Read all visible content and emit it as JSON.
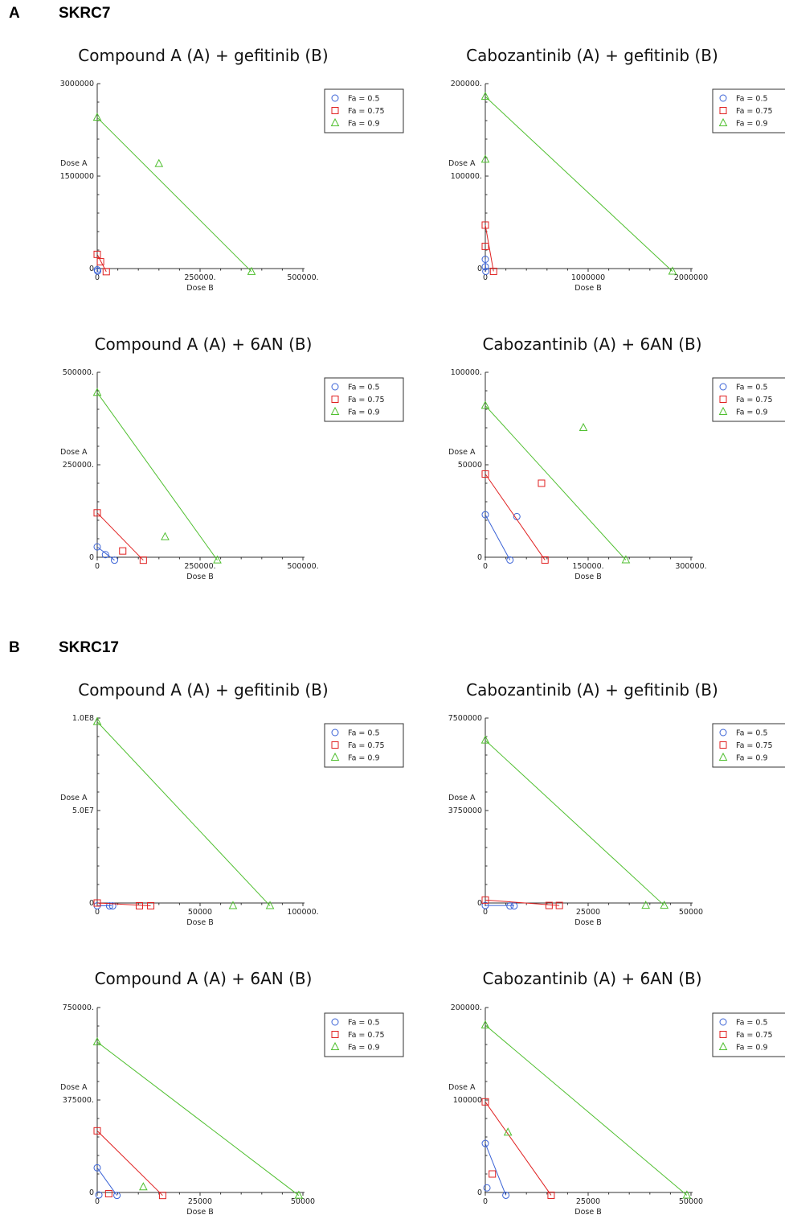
{
  "sections": [
    {
      "letter": "A",
      "cell_line": "SKRC7"
    },
    {
      "letter": "B",
      "cell_line": "SKRC17"
    }
  ],
  "colors": {
    "fa05": "#3b63d6",
    "fa075": "#e02020",
    "fa09": "#4fbf2f"
  },
  "legend": [
    "Fa = 0.5",
    "Fa = 0.75",
    "Fa = 0.9"
  ],
  "chart_data": [
    {
      "type": "scatter",
      "section": "SKRC7",
      "title": "Compound A (A) + gefitinib (B)",
      "xlabel": "Dose B",
      "ylabel": "Dose A",
      "xlim": [
        0,
        500000
      ],
      "ylim": [
        0,
        3000000
      ],
      "xticks": [
        "0",
        "250000.",
        "500000."
      ],
      "yticks": [
        "0",
        "1500000",
        "3000000"
      ],
      "series": [
        {
          "name": "Fa = 0.5",
          "lines": [
            [
              [
                0,
                0
              ],
              [
                2000,
                -50000
              ]
            ]
          ],
          "points": [
            [
              0,
              -20000
            ],
            [
              1000,
              -40000
            ]
          ]
        },
        {
          "name": "Fa = 0.75",
          "lines": [
            [
              [
                0,
                230000
              ],
              [
                22000,
                -50000
              ]
            ]
          ],
          "points": [
            [
              0,
              230000
            ],
            [
              8000,
              110000
            ],
            [
              22000,
              -50000
            ]
          ]
        },
        {
          "name": "Fa = 0.9",
          "lines": [
            [
              [
                0,
                2450000
              ],
              [
                375000,
                -50000
              ]
            ]
          ],
          "points": [
            [
              0,
              2450000
            ],
            [
              150000,
              1700000
            ],
            [
              375000,
              -50000
            ]
          ]
        }
      ]
    },
    {
      "type": "scatter",
      "section": "SKRC7",
      "title": "Cabozantinib (A) + gefitinib (B)",
      "xlabel": "Dose B",
      "ylabel": "Dose A",
      "xlim": [
        0,
        2000000
      ],
      "ylim": [
        0,
        200000
      ],
      "xticks": [
        "0",
        "1000000",
        "2000000"
      ],
      "yticks": [
        "0",
        "100000.",
        "200000."
      ],
      "series": [
        {
          "name": "Fa = 0.5",
          "lines": [
            [
              [
                0,
                10000
              ],
              [
                5000,
                -3000
              ]
            ]
          ],
          "points": [
            [
              0,
              10000
            ],
            [
              0,
              2000
            ],
            [
              5000,
              -3000
            ]
          ]
        },
        {
          "name": "Fa = 0.75",
          "lines": [
            [
              [
                0,
                47000
              ],
              [
                80000,
                -3000
              ]
            ]
          ],
          "points": [
            [
              0,
              47000
            ],
            [
              0,
              24000
            ],
            [
              80000,
              -3000
            ]
          ]
        },
        {
          "name": "Fa = 0.9",
          "lines": [
            [
              [
                0,
                186000
              ],
              [
                1820000,
                -3000
              ]
            ]
          ],
          "points": [
            [
              0,
              186000
            ],
            [
              0,
              118000
            ],
            [
              1820000,
              -3000
            ]
          ]
        }
      ]
    },
    {
      "type": "scatter",
      "section": "SKRC7",
      "title": "Compound A (A) + 6AN (B)",
      "xlabel": "Dose B",
      "ylabel": "Dose A",
      "xlim": [
        0,
        500000
      ],
      "ylim": [
        0,
        500000
      ],
      "xticks": [
        "0",
        "250000.",
        "500000."
      ],
      "yticks": [
        "0",
        "250000.",
        "500000."
      ],
      "series": [
        {
          "name": "Fa = 0.5",
          "lines": [
            [
              [
                0,
                28000
              ],
              [
                42000,
                -8000
              ]
            ]
          ],
          "points": [
            [
              0,
              28000
            ],
            [
              20000,
              7000
            ],
            [
              42000,
              -8000
            ]
          ]
        },
        {
          "name": "Fa = 0.75",
          "lines": [
            [
              [
                0,
                120000
              ],
              [
                112000,
                -8000
              ]
            ]
          ],
          "points": [
            [
              0,
              120000
            ],
            [
              62000,
              17000
            ],
            [
              112000,
              -8000
            ]
          ]
        },
        {
          "name": "Fa = 0.9",
          "lines": [
            [
              [
                0,
                445000
              ],
              [
                292000,
                -8000
              ]
            ]
          ],
          "points": [
            [
              0,
              445000
            ],
            [
              165000,
              55000
            ],
            [
              292000,
              -8000
            ]
          ]
        }
      ]
    },
    {
      "type": "scatter",
      "section": "SKRC7",
      "title": "Cabozantinib (A) + 6AN (B)",
      "xlabel": "Dose B",
      "ylabel": "Dose A",
      "xlim": [
        0,
        300000
      ],
      "ylim": [
        0,
        100000
      ],
      "xticks": [
        "0",
        "150000.",
        "300000."
      ],
      "yticks": [
        "0",
        "50000",
        "100000."
      ],
      "series": [
        {
          "name": "Fa = 0.5",
          "lines": [
            [
              [
                0,
                23000
              ],
              [
                36000,
                -1500
              ]
            ]
          ],
          "points": [
            [
              0,
              23000
            ],
            [
              46000,
              22000
            ],
            [
              36000,
              -1500
            ]
          ]
        },
        {
          "name": "Fa = 0.75",
          "lines": [
            [
              [
                0,
                45000
              ],
              [
                87000,
                -1500
              ]
            ]
          ],
          "points": [
            [
              0,
              45000
            ],
            [
              82000,
              40000
            ],
            [
              87000,
              -1500
            ]
          ]
        },
        {
          "name": "Fa = 0.9",
          "lines": [
            [
              [
                0,
                82000
              ],
              [
                205000,
                -1500
              ]
            ]
          ],
          "points": [
            [
              0,
              82000
            ],
            [
              143000,
              70000
            ],
            [
              205000,
              -1500
            ]
          ]
        }
      ]
    },
    {
      "type": "scatter",
      "section": "SKRC17",
      "title": "Compound A (A) + gefitinib (B)",
      "xlabel": "Dose B",
      "ylabel": "Dose A",
      "xlim": [
        0,
        100000
      ],
      "ylim": [
        0,
        100000000
      ],
      "xticks": [
        "0",
        "50000",
        "100000."
      ],
      "yticks": [
        "0",
        "5.0E7",
        "1.0E8"
      ],
      "series": [
        {
          "name": "Fa = 0.5",
          "lines": [
            [
              [
                0,
                -1500000
              ],
              [
                7000,
                -1500000
              ]
            ]
          ],
          "points": [
            [
              0,
              -1500000
            ],
            [
              6000,
              -1600000
            ],
            [
              7500,
              -1600000
            ]
          ]
        },
        {
          "name": "Fa = 0.75",
          "lines": [
            [
              [
                0,
                0
              ],
              [
                26000,
                -1500000
              ]
            ]
          ],
          "points": [
            [
              0,
              0
            ],
            [
              20500,
              -1500000
            ],
            [
              26000,
              -1500000
            ]
          ]
        },
        {
          "name": "Fa = 0.9",
          "lines": [
            [
              [
                0,
                98000000
              ],
              [
                84000,
                -1500000
              ]
            ]
          ],
          "points": [
            [
              0,
              98000000
            ],
            [
              66000,
              -1500000
            ],
            [
              84000,
              -1500000
            ]
          ]
        }
      ]
    },
    {
      "type": "scatter",
      "section": "SKRC17",
      "title": "Cabozantinib (A) + gefitinib (B)",
      "xlabel": "Dose B",
      "ylabel": "Dose A",
      "xlim": [
        0,
        50000
      ],
      "ylim": [
        0,
        7500000
      ],
      "xticks": [
        "0",
        "25000",
        "50000"
      ],
      "yticks": [
        "0",
        "3750000",
        "7500000"
      ],
      "series": [
        {
          "name": "Fa = 0.5",
          "lines": [
            [
              [
                0,
                -100000
              ],
              [
                7000,
                -100000
              ]
            ]
          ],
          "points": [
            [
              0,
              -100000
            ],
            [
              6000,
              -120000
            ],
            [
              7000,
              -120000
            ]
          ]
        },
        {
          "name": "Fa = 0.75",
          "lines": [
            [
              [
                0,
                120000
              ],
              [
                18000,
                -100000
              ]
            ]
          ],
          "points": [
            [
              0,
              120000
            ],
            [
              15500,
              -100000
            ],
            [
              18000,
              -100000
            ]
          ]
        },
        {
          "name": "Fa = 0.9",
          "lines": [
            [
              [
                0,
                6600000
              ],
              [
                43500,
                -100000
              ]
            ]
          ],
          "points": [
            [
              0,
              6600000
            ],
            [
              39000,
              -100000
            ],
            [
              43500,
              -100000
            ]
          ]
        }
      ]
    },
    {
      "type": "scatter",
      "section": "SKRC17",
      "title": "Compound A (A) + 6AN (B)",
      "xlabel": "Dose B",
      "ylabel": "Dose A",
      "xlim": [
        0,
        50000
      ],
      "ylim": [
        0,
        750000
      ],
      "xticks": [
        "0",
        "25000",
        "50000"
      ],
      "yticks": [
        "0",
        "375000.",
        "750000."
      ],
      "series": [
        {
          "name": "Fa = 0.5",
          "lines": [
            [
              [
                0,
                100000
              ],
              [
                4800,
                -12000
              ]
            ]
          ],
          "points": [
            [
              0,
              100000
            ],
            [
              400,
              -10000
            ],
            [
              4800,
              -12000
            ]
          ]
        },
        {
          "name": "Fa = 0.75",
          "lines": [
            [
              [
                0,
                250000
              ],
              [
                15900,
                -12000
              ]
            ]
          ],
          "points": [
            [
              0,
              250000
            ],
            [
              2800,
              -5000
            ],
            [
              15900,
              -12000
            ]
          ]
        },
        {
          "name": "Fa = 0.9",
          "lines": [
            [
              [
                0,
                610000
              ],
              [
                49000,
                -12000
              ]
            ]
          ],
          "points": [
            [
              0,
              610000
            ],
            [
              11200,
              22000
            ],
            [
              49000,
              -12000
            ]
          ]
        }
      ]
    },
    {
      "type": "scatter",
      "section": "SKRC17",
      "title": "Cabozantinib (A) + 6AN (B)",
      "xlabel": "Dose B",
      "ylabel": "Dose A",
      "xlim": [
        0,
        50000
      ],
      "ylim": [
        0,
        200000
      ],
      "xticks": [
        "0",
        "25000",
        "50000"
      ],
      "yticks": [
        "0",
        "100000",
        "200000."
      ],
      "series": [
        {
          "name": "Fa = 0.5",
          "lines": [
            [
              [
                0,
                53000
              ],
              [
                5000,
                -3000
              ]
            ]
          ],
          "points": [
            [
              0,
              53000
            ],
            [
              400,
              5000
            ],
            [
              5000,
              -3000
            ]
          ]
        },
        {
          "name": "Fa = 0.75",
          "lines": [
            [
              [
                0,
                98000
              ],
              [
                16000,
                -3000
              ]
            ]
          ],
          "points": [
            [
              0,
              98000
            ],
            [
              1700,
              20000
            ],
            [
              16000,
              -3000
            ]
          ]
        },
        {
          "name": "Fa = 0.9",
          "lines": [
            [
              [
                0,
                181000
              ],
              [
                49000,
                -3000
              ]
            ]
          ],
          "points": [
            [
              0,
              181000
            ],
            [
              5500,
              65000
            ],
            [
              49000,
              -3000
            ]
          ]
        }
      ]
    }
  ]
}
